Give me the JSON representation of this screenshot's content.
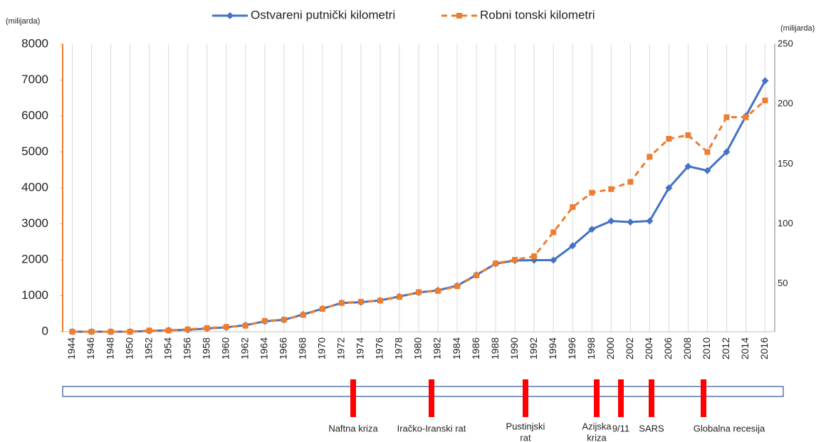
{
  "chart_data": {
    "type": "line",
    "y_label": "(milijarda)",
    "y2_label": "(milijarda)",
    "categories": [
      "1944",
      "1946",
      "1948",
      "1950",
      "1952",
      "1954",
      "1956",
      "1958",
      "1960",
      "1962",
      "1964",
      "1966",
      "1968",
      "1970",
      "1972",
      "1974",
      "1976",
      "1978",
      "1980",
      "1982",
      "1984",
      "1986",
      "1988",
      "1990",
      "1992",
      "1994",
      "1996",
      "1998",
      "2000",
      "2002",
      "2004",
      "2006",
      "2008",
      "2010",
      "2012",
      "2014",
      "2016"
    ],
    "series": [
      {
        "name": "Ostvareni putnički kilometri",
        "color": "#4472c4",
        "axis": "y",
        "values": [
          0,
          0,
          0,
          0,
          20,
          40,
          50,
          90,
          120,
          180,
          290,
          330,
          480,
          640,
          800,
          820,
          870,
          980,
          1090,
          1150,
          1280,
          1580,
          1890,
          1980,
          1990,
          1990,
          2390,
          2850,
          3080,
          3050,
          3080,
          4000,
          4600,
          4480,
          5000,
          6000,
          6980
        ]
      },
      {
        "name": "Robni tonski kilometri",
        "color": "#ed7d31",
        "axis": "y2",
        "values": [
          10,
          10,
          10,
          10,
          11,
          11,
          12,
          13,
          14,
          15,
          19,
          20,
          24,
          29,
          34,
          35,
          36,
          39,
          43,
          44,
          48,
          57,
          67,
          70,
          73,
          93,
          114,
          126,
          129,
          135,
          156,
          171,
          174,
          160,
          189,
          189,
          203
        ]
      }
    ],
    "ylim": [
      0,
      8000
    ],
    "yticks": [
      0,
      1000,
      2000,
      3000,
      4000,
      5000,
      6000,
      7000,
      8000
    ],
    "y2lim": [
      10,
      250
    ],
    "y2ticks": [
      50,
      100,
      150,
      200,
      250
    ],
    "grid": true,
    "events": [
      {
        "lines": [
          "Naftna kriza"
        ]
      },
      {
        "lines": [
          "Iračko-Iranski rat"
        ]
      },
      {
        "lines": [
          "Pustinjski",
          "rat"
        ]
      },
      {
        "lines": [
          "Azijska",
          "kriza"
        ]
      },
      {
        "lines": [
          "9/11"
        ]
      },
      {
        "lines": [
          "SARS"
        ]
      },
      {
        "lines": [
          "Globalna recesija"
        ]
      }
    ]
  }
}
